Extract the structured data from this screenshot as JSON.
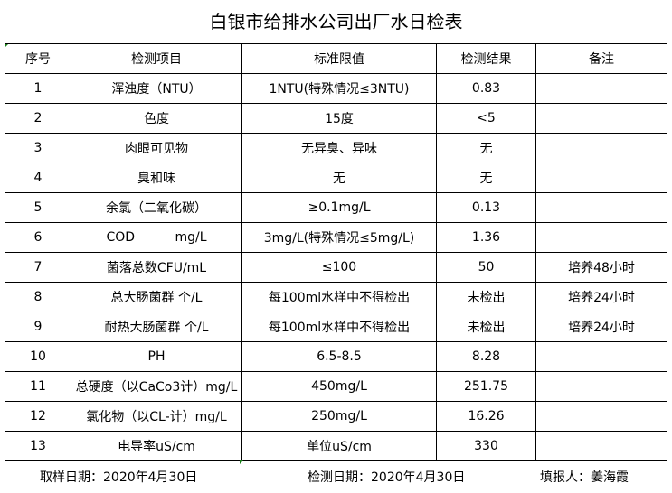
{
  "title": "白银市给排水公司出厂水日检表",
  "headers": [
    "序号",
    "检测项目",
    "标准限值",
    "检测结果",
    "备注"
  ],
  "rows": [
    [
      "1",
      "浑浊度（NTU）",
      "1NTU(特殊情况≤3NTU)",
      "0.83",
      ""
    ],
    [
      "2",
      "色度",
      "15度",
      "<5",
      ""
    ],
    [
      "3",
      "肉眼可见物",
      "无异臭、异味",
      "无",
      ""
    ],
    [
      "4",
      "臭和味",
      "无",
      "无",
      ""
    ],
    [
      "5",
      "余氯（二氧化碳）",
      "≥0.1mg/L",
      "0.13",
      ""
    ],
    [
      "6",
      "COD          mg/L",
      "3mg/L(特殊情况≤5mg/L)",
      "1.36",
      ""
    ],
    [
      "7",
      "菌落总数CFU/mL",
      "≤100",
      "50",
      "培养48小时"
    ],
    [
      "8",
      "总大肠菌群 个/L",
      "每100ml水样中不得检出",
      "未检出",
      "培养24小时"
    ],
    [
      "9",
      "耐热大肠菌群 个/L",
      "每100ml水样中不得检出",
      "未检出",
      "培养24小时"
    ],
    [
      "10",
      "PH",
      "6.5-8.5",
      "8.28",
      ""
    ],
    [
      "11",
      "总硬度（以CaCo3计）mg/L",
      "450mg/L",
      "251.75",
      ""
    ],
    [
      "12",
      "氯化物（以CL-计）mg/L",
      "250mg/L",
      "16.26",
      ""
    ],
    [
      "13",
      "电导率uS/cm",
      "单位uS/cm",
      "330",
      ""
    ]
  ],
  "footer": {
    "sample_date": "取样日期：2020年4月30日",
    "test_date": "检测日期：2020年4月30日",
    "reporter": "填报人：姜海霞"
  }
}
